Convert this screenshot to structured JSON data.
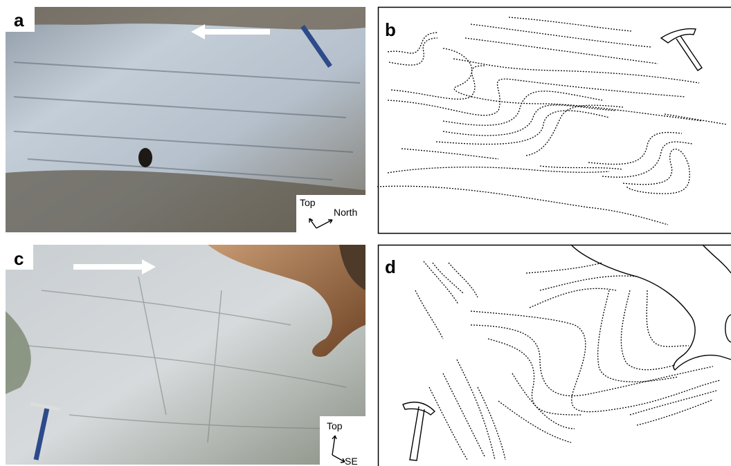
{
  "panels": [
    {
      "label": "a",
      "orientation": {
        "up": "Top",
        "right": "North"
      }
    },
    {
      "label": "b"
    },
    {
      "label": "c",
      "orientation": {
        "up": "Top",
        "right": "SE"
      }
    },
    {
      "label": "d"
    }
  ]
}
